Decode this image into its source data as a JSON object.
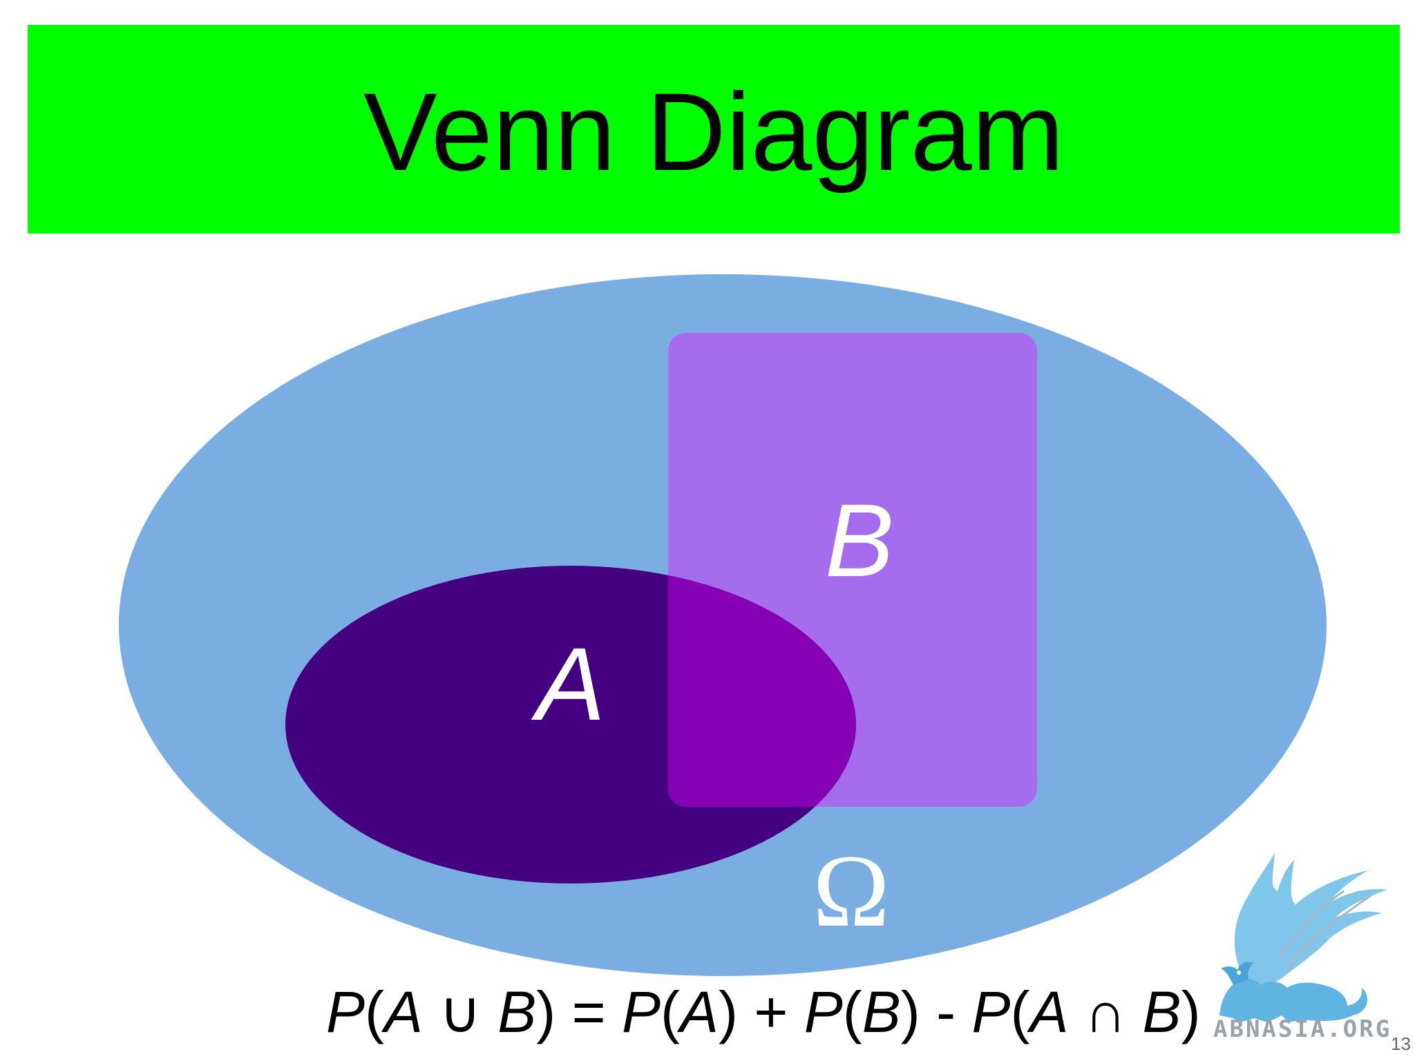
{
  "slide": {
    "title": "Venn Diagram",
    "page_number": "13"
  },
  "diagram": {
    "universe_label": "Ω",
    "set_a_label": "A",
    "set_b_label": "B",
    "colors": {
      "title_bar": "#00ff00",
      "universe": "#7aaee2",
      "set_a": "#440080",
      "set_b": "#a66cee",
      "intersection": "#8600b4"
    }
  },
  "formula": {
    "lhs_p": "P",
    "lhs_open": "(",
    "lhs_a": "A",
    "union": " ∪ ",
    "lhs_b": "B",
    "lhs_close": ")",
    "equals": " = ",
    "pa_p": "P",
    "pa_open": "(",
    "pa_a": "A",
    "pa_close": ")",
    "plus": " + ",
    "pb_p": "P",
    "pb_open": "(",
    "pb_b": "B",
    "pb_close": ")",
    "minus": " - ",
    "pi_p": "P",
    "pi_open": "(",
    "pi_a": "A",
    "intersect": " ∩ ",
    "pi_b": "B",
    "pi_close": ")"
  },
  "logo": {
    "text": "ABNASIA.ORG",
    "icon": "griffin-logo-icon"
  }
}
